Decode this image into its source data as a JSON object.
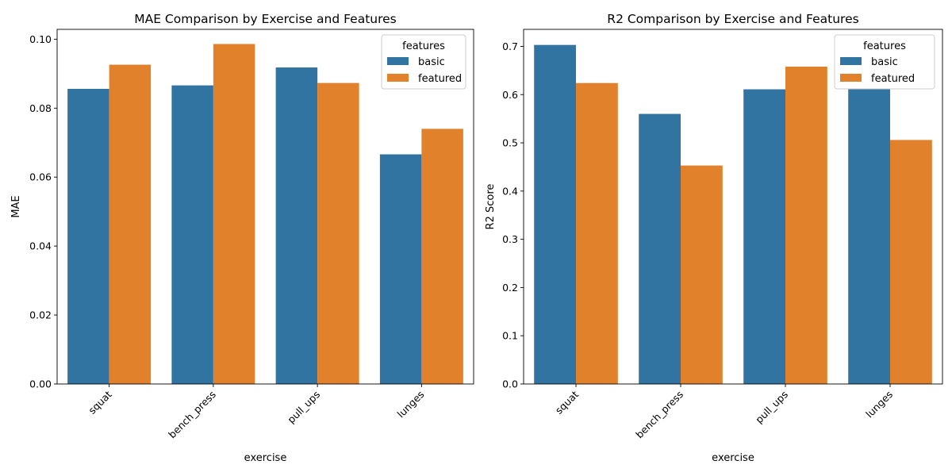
{
  "colors": {
    "basic": "#3274a1",
    "featured": "#e1812c"
  },
  "chart_data": [
    {
      "type": "bar",
      "title": "MAE Comparison by Exercise and Features",
      "xlabel": "exercise",
      "ylabel": "MAE",
      "categories": [
        "squat",
        "bench_press",
        "pull_ups",
        "lunges"
      ],
      "series": [
        {
          "name": "basic",
          "values": [
            0.0856,
            0.0866,
            0.0918,
            0.0666
          ]
        },
        {
          "name": "featured",
          "values": [
            0.0926,
            0.0986,
            0.0873,
            0.074
          ]
        }
      ],
      "ylim": [
        0,
        0.10285
      ],
      "yticks": [
        0.0,
        0.02,
        0.04,
        0.06,
        0.08,
        0.1
      ],
      "ytick_labels": [
        "0.00",
        "0.02",
        "0.04",
        "0.06",
        "0.08",
        "0.10"
      ],
      "legend_title": "features",
      "legend_placement": "top-right",
      "grid": false
    },
    {
      "type": "bar",
      "title": "R2 Comparison by Exercise and Features",
      "xlabel": "exercise",
      "ylabel": "R2 Score",
      "categories": [
        "squat",
        "bench_press",
        "pull_ups",
        "lunges"
      ],
      "series": [
        {
          "name": "basic",
          "values": [
            0.703,
            0.56,
            0.611,
            0.611
          ]
        },
        {
          "name": "featured",
          "values": [
            0.624,
            0.453,
            0.658,
            0.506
          ]
        }
      ],
      "ylim": [
        0,
        0.7353
      ],
      "yticks": [
        0.0,
        0.1,
        0.2,
        0.3,
        0.4,
        0.5,
        0.6,
        0.7
      ],
      "ytick_labels": [
        "0.0",
        "0.1",
        "0.2",
        "0.3",
        "0.4",
        "0.5",
        "0.6",
        "0.7"
      ],
      "legend_title": "features",
      "legend_placement": "top-right",
      "grid": false
    }
  ]
}
